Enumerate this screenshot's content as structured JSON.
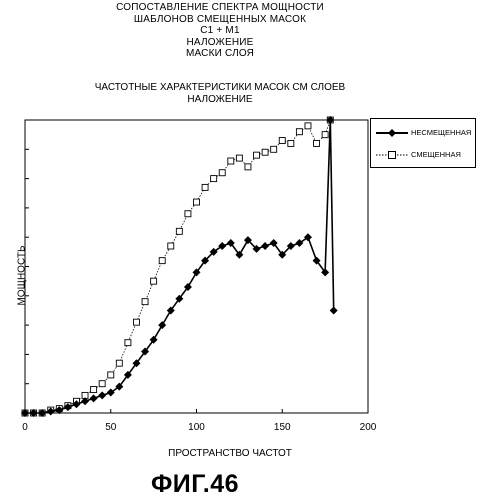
{
  "header": {
    "title_lines": [
      "СОПОСТАВЛЕНИЕ СПЕКТРА МОЩНОСТИ",
      "ШАБЛОНОВ СМЕЩЕННЫХ МАСОК",
      "C1 + M1",
      "НАЛОЖЕНИЕ",
      "МАСКИ СЛОЯ"
    ],
    "subtitle_lines": [
      "ЧАСТОТНЫЕ ХАРАКТЕРИСТИКИ МАСОК СМ СЛОЕВ",
      "НАЛОЖЕНИЕ"
    ]
  },
  "figure_label": "ФИГ.46",
  "chart_data": {
    "type": "line",
    "xlabel": "ПРОСТРАНСТВО ЧАСТОТ",
    "ylabel": "МОЩНОСТЬ",
    "xlim": [
      0,
      200
    ],
    "ylim": [
      0,
      100
    ],
    "xticks": [
      "0",
      "50",
      "100",
      "150",
      "200"
    ],
    "grid": false,
    "legend_position": "top-right",
    "series": [
      {
        "name": "НЕСМЕЩЕННАЯ",
        "marker": "filled-diamond",
        "color": "#000000",
        "x": [
          0,
          5,
          10,
          15,
          20,
          25,
          30,
          35,
          40,
          45,
          50,
          55,
          60,
          65,
          70,
          75,
          80,
          85,
          90,
          95,
          100,
          105,
          110,
          115,
          120,
          125,
          130,
          135,
          140,
          145,
          150,
          155,
          160,
          165,
          170,
          175,
          178,
          180
        ],
        "y": [
          0,
          0,
          0,
          0.5,
          1,
          2,
          3,
          4,
          5,
          6,
          7,
          9,
          13,
          17,
          21,
          25,
          30,
          35,
          39,
          43,
          48,
          52,
          55,
          57,
          58,
          54,
          59,
          56,
          57,
          58,
          54,
          57,
          58,
          60,
          52,
          48,
          100,
          35
        ]
      },
      {
        "name": "СМЕЩЕННАЯ",
        "marker": "open-square",
        "color": "#000000",
        "x": [
          0,
          5,
          10,
          15,
          20,
          25,
          30,
          35,
          40,
          45,
          50,
          55,
          60,
          65,
          70,
          75,
          80,
          85,
          90,
          95,
          100,
          105,
          110,
          115,
          120,
          125,
          130,
          135,
          140,
          145,
          150,
          155,
          160,
          165,
          170,
          175,
          178
        ],
        "y": [
          0,
          0,
          0,
          1,
          1.5,
          2.5,
          4,
          6,
          8,
          10,
          13,
          17,
          24,
          31,
          38,
          45,
          52,
          57,
          62,
          68,
          72,
          77,
          80,
          82,
          86,
          87,
          84,
          88,
          89,
          90,
          93,
          92,
          96,
          98,
          92,
          95,
          100
        ]
      }
    ]
  }
}
